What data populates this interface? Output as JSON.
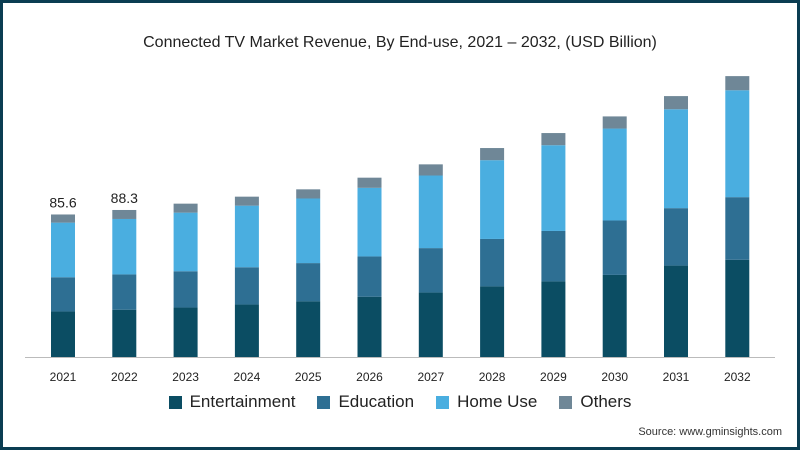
{
  "chart_data": {
    "type": "bar",
    "stacked": true,
    "title": "Connected TV Market Revenue, By End-use, 2021 – 2032, (USD Billion)",
    "categories": [
      "2021",
      "2022",
      "2023",
      "2024",
      "2025",
      "2026",
      "2027",
      "2028",
      "2029",
      "2030",
      "2031",
      "2032"
    ],
    "series": [
      {
        "name": "Entertainment",
        "color": "#0b4d63",
        "values": [
          27.3,
          28.4,
          29.7,
          31.5,
          33.4,
          36.2,
          38.7,
          42.4,
          45.4,
          49.3,
          54.9,
          58.4
        ]
      },
      {
        "name": "Education",
        "color": "#2e6f93",
        "values": [
          20.6,
          21.2,
          21.8,
          22.4,
          23.0,
          24.2,
          26.7,
          28.5,
          30.3,
          32.7,
          34.5,
          37.6
        ]
      },
      {
        "name": "Home Use",
        "color": "#4aaee0",
        "values": [
          32.8,
          33.3,
          35.2,
          37.0,
          38.8,
          41.2,
          43.6,
          47.3,
          51.5,
          55.2,
          59.4,
          64.2
        ]
      },
      {
        "name": "Others",
        "color": "#6f8797",
        "values": [
          4.9,
          5.4,
          5.4,
          5.4,
          5.5,
          6.1,
          6.7,
          7.3,
          7.3,
          7.3,
          7.9,
          8.5
        ]
      }
    ],
    "data_labels": [
      {
        "category": "2021",
        "text": "85.6"
      },
      {
        "category": "2022",
        "text": "88.3"
      }
    ],
    "legend_position": "bottom",
    "grid": false,
    "source": "Source: www.gminsights.com"
  }
}
